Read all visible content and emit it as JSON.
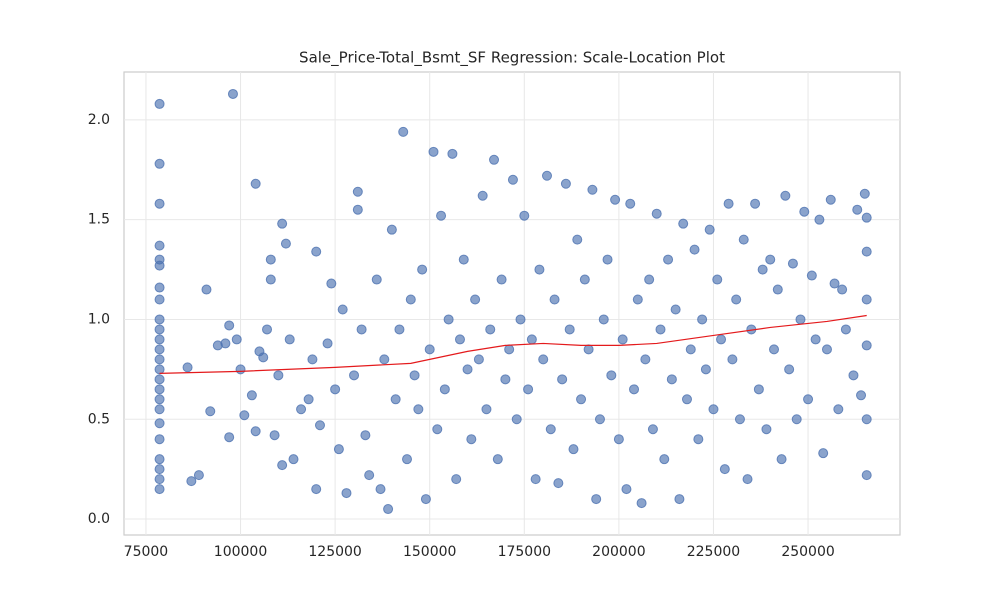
{
  "chart_data": {
    "type": "scatter",
    "title": "Sale_Price-Total_Bsmt_SF Regression: Scale-Location Plot",
    "xlim": [
      69200,
      274300
    ],
    "ylim": [
      -0.08,
      2.24
    ],
    "xticks": [
      75000,
      100000,
      125000,
      150000,
      175000,
      200000,
      225000,
      250000
    ],
    "yticks": [
      {
        "value": 0,
        "label": "0.0"
      },
      0.5,
      {
        "value": 1,
        "label": "1.0"
      },
      1.5,
      {
        "value": 2,
        "label": "2.0"
      }
    ],
    "grid": true,
    "series": [
      {
        "type": "scatter",
        "color": "#4c72b0",
        "x": [
          78600,
          78600,
          78600,
          78600,
          78600,
          78600,
          78600,
          78600,
          78600,
          78600,
          78600,
          78600,
          78600,
          78600,
          78600,
          78600,
          78600,
          78600,
          78600,
          78600,
          78600,
          78600,
          78600,
          78600,
          86000,
          87000,
          89000,
          91000,
          92000,
          94000,
          96000,
          97000,
          97000,
          98000,
          99000,
          100000,
          101000,
          103000,
          104000,
          104000,
          105000,
          106000,
          107000,
          108000,
          108000,
          109000,
          110000,
          111000,
          111000,
          112000,
          113000,
          114000,
          116000,
          118000,
          119000,
          120000,
          120000,
          121000,
          123000,
          124000,
          125000,
          126000,
          127000,
          128000,
          130000,
          131000,
          131000,
          132000,
          133000,
          134000,
          136000,
          137000,
          138000,
          139000,
          140000,
          141000,
          142000,
          143000,
          144000,
          145000,
          146000,
          147000,
          148000,
          149000,
          150000,
          151000,
          152000,
          153000,
          154000,
          155000,
          156000,
          157000,
          158000,
          159000,
          160000,
          161000,
          162000,
          163000,
          164000,
          165000,
          166000,
          167000,
          168000,
          169000,
          170000,
          171000,
          172000,
          173000,
          174000,
          175000,
          176000,
          177000,
          178000,
          179000,
          180000,
          181000,
          182000,
          183000,
          184000,
          185000,
          186000,
          187000,
          188000,
          189000,
          190000,
          191000,
          192000,
          193000,
          194000,
          195000,
          196000,
          197000,
          198000,
          199000,
          200000,
          201000,
          202000,
          203000,
          204000,
          205000,
          206000,
          207000,
          208000,
          209000,
          210000,
          211000,
          212000,
          213000,
          214000,
          215000,
          216000,
          217000,
          218000,
          219000,
          220000,
          221000,
          222000,
          223000,
          224000,
          225000,
          226000,
          227000,
          228000,
          229000,
          230000,
          231000,
          232000,
          233000,
          234000,
          235000,
          236000,
          237000,
          238000,
          239000,
          240000,
          241000,
          242000,
          243000,
          244000,
          245000,
          246000,
          247000,
          248000,
          249000,
          250000,
          251000,
          252000,
          253000,
          254000,
          255000,
          256000,
          257000,
          258000,
          259000,
          260000,
          262000,
          263000,
          264000,
          265000,
          265500,
          265500,
          265500,
          265500,
          265500,
          265500
        ],
        "values": [
          2.08,
          1.78,
          1.58,
          1.37,
          1.3,
          1.27,
          1.16,
          1.1,
          1.0,
          0.95,
          0.9,
          0.85,
          0.8,
          0.75,
          0.7,
          0.65,
          0.6,
          0.55,
          0.48,
          0.4,
          0.3,
          0.25,
          0.2,
          0.15,
          0.76,
          0.19,
          0.22,
          1.15,
          0.54,
          0.87,
          0.88,
          0.41,
          0.97,
          2.13,
          0.9,
          0.75,
          0.52,
          0.62,
          1.68,
          0.44,
          0.84,
          0.81,
          0.95,
          1.3,
          1.2,
          0.42,
          0.72,
          1.48,
          0.27,
          1.38,
          0.9,
          0.3,
          0.55,
          0.6,
          0.8,
          1.34,
          0.15,
          0.47,
          0.88,
          1.18,
          0.65,
          0.35,
          1.05,
          0.13,
          0.72,
          1.64,
          1.55,
          0.95,
          0.42,
          0.22,
          1.2,
          0.15,
          0.8,
          0.05,
          1.45,
          0.6,
          0.95,
          1.94,
          0.3,
          1.1,
          0.72,
          0.55,
          1.25,
          0.1,
          0.85,
          1.84,
          0.45,
          1.52,
          0.65,
          1.0,
          1.83,
          0.2,
          0.9,
          1.3,
          0.75,
          0.4,
          1.1,
          0.8,
          1.62,
          0.55,
          0.95,
          1.8,
          0.3,
          1.2,
          0.7,
          0.85,
          1.7,
          0.5,
          1.0,
          1.52,
          0.65,
          0.9,
          0.2,
          1.25,
          0.8,
          1.72,
          0.45,
          1.1,
          0.18,
          0.7,
          1.68,
          0.95,
          0.35,
          1.4,
          0.6,
          1.2,
          0.85,
          1.65,
          0.1,
          0.5,
          1.0,
          1.3,
          0.72,
          1.6,
          0.4,
          0.9,
          0.15,
          1.58,
          0.65,
          1.1,
          0.08,
          0.8,
          1.2,
          0.45,
          1.53,
          0.95,
          0.3,
          1.3,
          0.7,
          1.05,
          0.1,
          1.48,
          0.6,
          0.85,
          1.35,
          0.4,
          1.0,
          0.75,
          1.45,
          0.55,
          1.2,
          0.9,
          0.25,
          1.58,
          0.8,
          1.1,
          0.5,
          1.4,
          0.2,
          0.95,
          1.58,
          0.65,
          1.25,
          0.45,
          1.3,
          0.85,
          1.15,
          0.3,
          1.62,
          0.75,
          1.28,
          0.5,
          1.0,
          1.54,
          0.6,
          1.22,
          0.9,
          1.5,
          0.33,
          0.85,
          1.6,
          1.18,
          0.55,
          1.15,
          0.95,
          0.72,
          1.55,
          0.62,
          1.63,
          1.1,
          1.51,
          1.34,
          0.22,
          0.5,
          0.87
        ]
      },
      {
        "type": "line",
        "color": "#e41a1c",
        "x": [
          78600,
          100000,
          125000,
          145000,
          150000,
          160000,
          170000,
          180000,
          190000,
          200000,
          210000,
          225000,
          240000,
          255000,
          265500
        ],
        "values": [
          0.73,
          0.74,
          0.76,
          0.78,
          0.8,
          0.84,
          0.87,
          0.88,
          0.87,
          0.87,
          0.88,
          0.92,
          0.96,
          0.99,
          1.02
        ]
      }
    ]
  }
}
